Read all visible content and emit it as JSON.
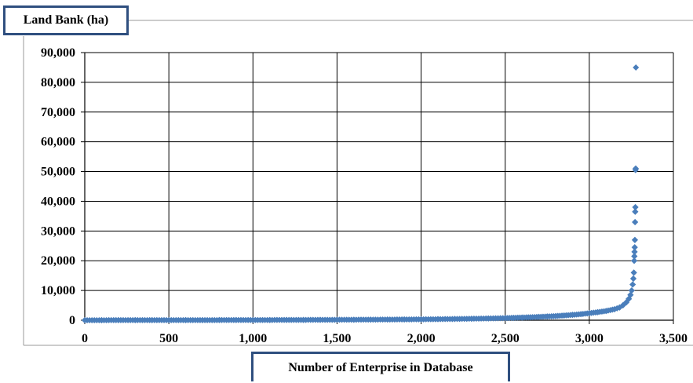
{
  "chart_data": {
    "type": "scatter",
    "title": "",
    "ylabel": "Land Bank (ha)",
    "xlabel": "Number of Enterprise in Database",
    "xlim": [
      0,
      3500
    ],
    "ylim": [
      0,
      90000
    ],
    "xticks": [
      0,
      500,
      1000,
      1500,
      2000,
      2500,
      3000,
      3500
    ],
    "yticks": [
      0,
      10000,
      20000,
      30000,
      40000,
      50000,
      60000,
      70000,
      80000,
      90000
    ],
    "xtick_labels": [
      "0",
      "500",
      "1,000",
      "1,500",
      "2,000",
      "2,500",
      "3,000",
      "3,500"
    ],
    "ytick_labels": [
      "0",
      "10,000",
      "20,000",
      "30,000",
      "40,000",
      "50,000",
      "60,000",
      "70,000",
      "80,000",
      "90,000"
    ],
    "grid": true,
    "marker_color": "#4a7ebb",
    "series": [
      {
        "marker": "diamond",
        "points": [
          [
            0,
            10
          ],
          [
            100,
            15
          ],
          [
            200,
            20
          ],
          [
            300,
            25
          ],
          [
            400,
            30
          ],
          [
            500,
            35
          ],
          [
            600,
            40
          ],
          [
            700,
            45
          ],
          [
            800,
            50
          ],
          [
            900,
            60
          ],
          [
            1000,
            70
          ],
          [
            1100,
            80
          ],
          [
            1200,
            95
          ],
          [
            1300,
            110
          ],
          [
            1400,
            130
          ],
          [
            1500,
            150
          ],
          [
            1600,
            175
          ],
          [
            1700,
            200
          ],
          [
            1800,
            230
          ],
          [
            1900,
            265
          ],
          [
            2000,
            300
          ],
          [
            2100,
            350
          ],
          [
            2200,
            420
          ],
          [
            2300,
            500
          ],
          [
            2400,
            600
          ],
          [
            2500,
            720
          ],
          [
            2550,
            800
          ],
          [
            2600,
            900
          ],
          [
            2650,
            1000
          ],
          [
            2700,
            1120
          ],
          [
            2750,
            1250
          ],
          [
            2800,
            1400
          ],
          [
            2850,
            1580
          ],
          [
            2900,
            1800
          ],
          [
            2950,
            2050
          ],
          [
            3000,
            2350
          ],
          [
            3050,
            2700
          ],
          [
            3100,
            3100
          ],
          [
            3150,
            3700
          ],
          [
            3180,
            4300
          ],
          [
            3200,
            5000
          ],
          [
            3220,
            6000
          ],
          [
            3235,
            7200
          ],
          [
            3245,
            8500
          ],
          [
            3252,
            10000
          ],
          [
            3258,
            12000
          ],
          [
            3262,
            14000
          ],
          [
            3265,
            16000
          ],
          [
            3267,
            20000
          ],
          [
            3268,
            21500
          ],
          [
            3269,
            23000
          ],
          [
            3270,
            24500
          ],
          [
            3271,
            27000
          ],
          [
            3272,
            33000
          ],
          [
            3273,
            36500
          ],
          [
            3274,
            38000
          ],
          [
            3275,
            50500
          ],
          [
            3276,
            51000
          ],
          [
            3277,
            85000
          ]
        ]
      }
    ]
  }
}
